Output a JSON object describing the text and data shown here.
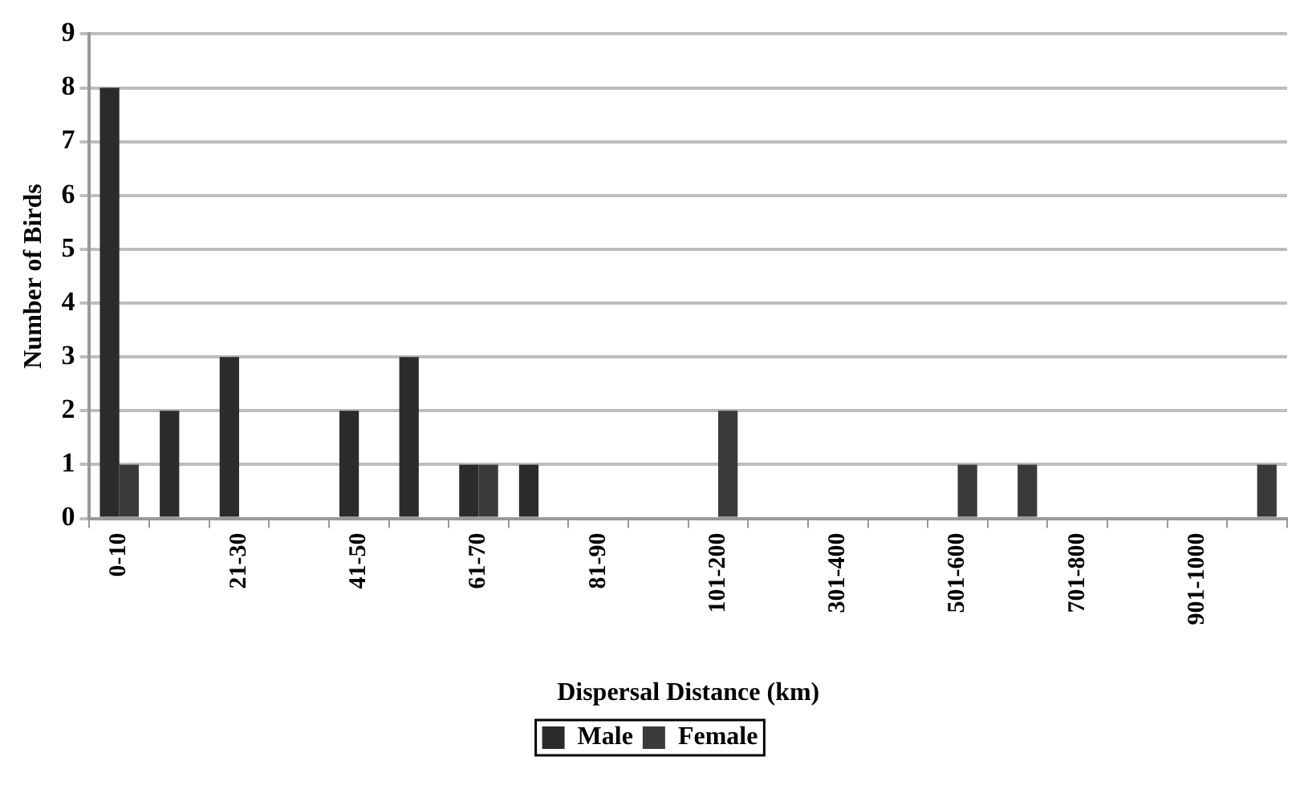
{
  "chart_data": {
    "type": "bar",
    "xlabel": "Dispersal Distance (km)",
    "ylabel": "Number of Birds",
    "categories": [
      "0-10",
      null,
      "21-30",
      null,
      "41-50",
      null,
      "61-70",
      null,
      "81-90",
      null,
      "101-200",
      null,
      "301-400",
      null,
      "501-600",
      null,
      "701-800",
      null,
      "901-1000",
      null
    ],
    "series": [
      {
        "name": "Male",
        "color": "#2b2b2b",
        "values": [
          8,
          2,
          3,
          0,
          2,
          3,
          1,
          1,
          0,
          0,
          0,
          0,
          0,
          0,
          0,
          0,
          0,
          0,
          0,
          0
        ]
      },
      {
        "name": "Female",
        "color": "#3a3a3a",
        "values": [
          1,
          0,
          0,
          0,
          0,
          0,
          1,
          0,
          0,
          0,
          2,
          0,
          0,
          0,
          1,
          1,
          0,
          0,
          0,
          1
        ]
      }
    ],
    "ylim": [
      0,
      9
    ],
    "yticks": [
      0,
      1,
      2,
      3,
      4,
      5,
      6,
      7,
      8,
      9
    ],
    "grid": "y",
    "legend": "bottom"
  }
}
